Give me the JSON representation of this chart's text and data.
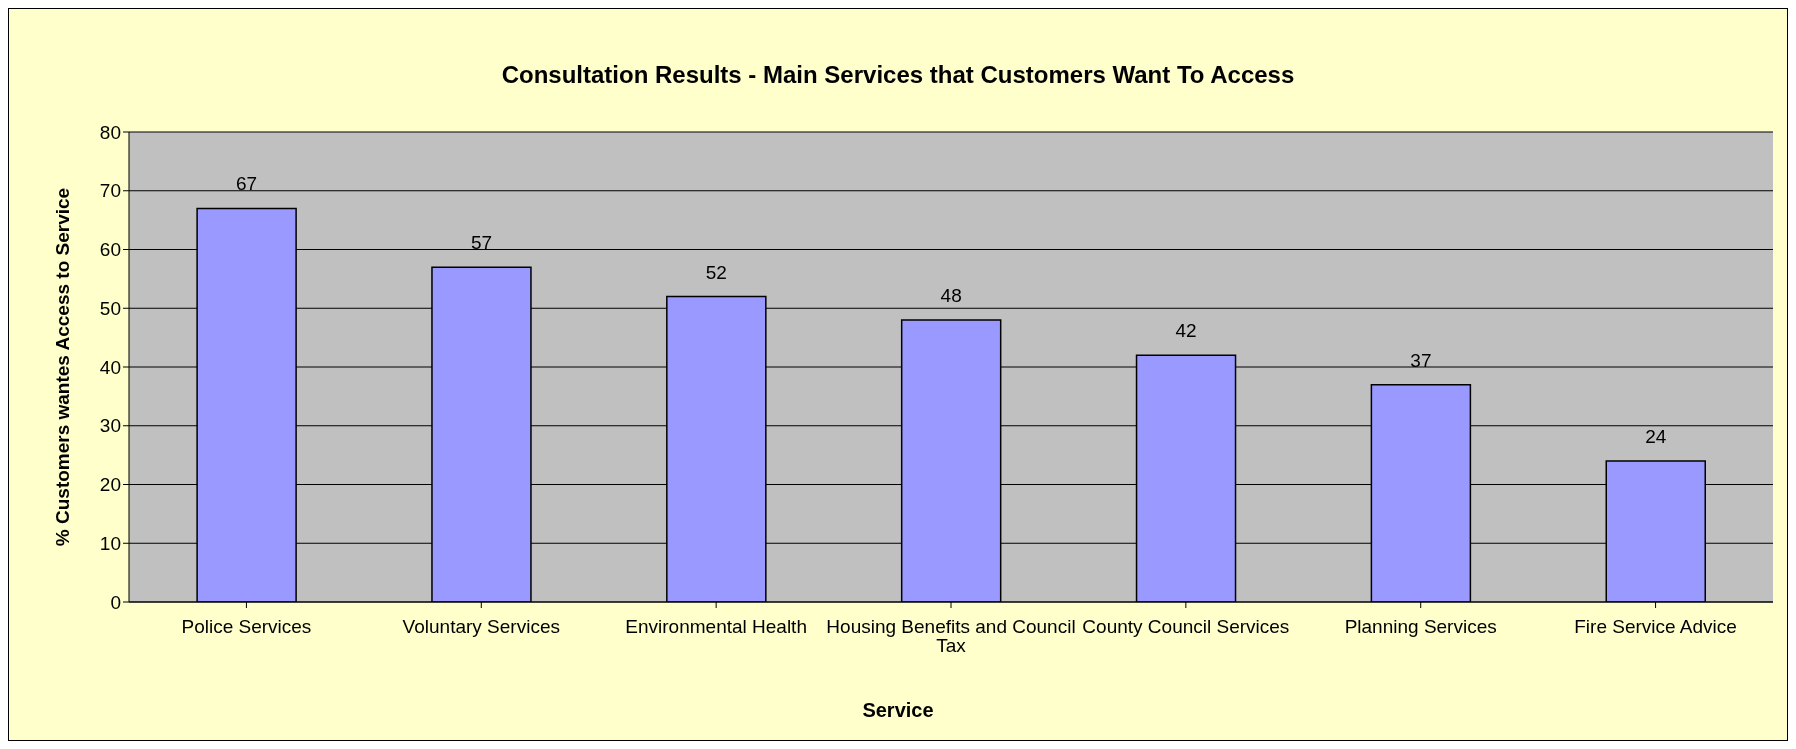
{
  "chart_data": {
    "type": "bar",
    "title": "Consultation Results - Main Services that Customers Want To Access",
    "xlabel": "Service",
    "ylabel": "% Customers wantes Access to Service",
    "categories": [
      "Police Services",
      "Voluntary Services",
      "Environmental Health",
      "Housing Benefits and Council Tax",
      "County Council Services",
      "Planning Services",
      "Fire Service Advice"
    ],
    "values": [
      67,
      57,
      52,
      48,
      42,
      37,
      24
    ],
    "color": "#9999ff",
    "ylim": [
      0,
      80
    ],
    "yticks": [
      0,
      10,
      20,
      30,
      40,
      50,
      60,
      70,
      80
    ],
    "grid": "y",
    "data_labels": true
  }
}
